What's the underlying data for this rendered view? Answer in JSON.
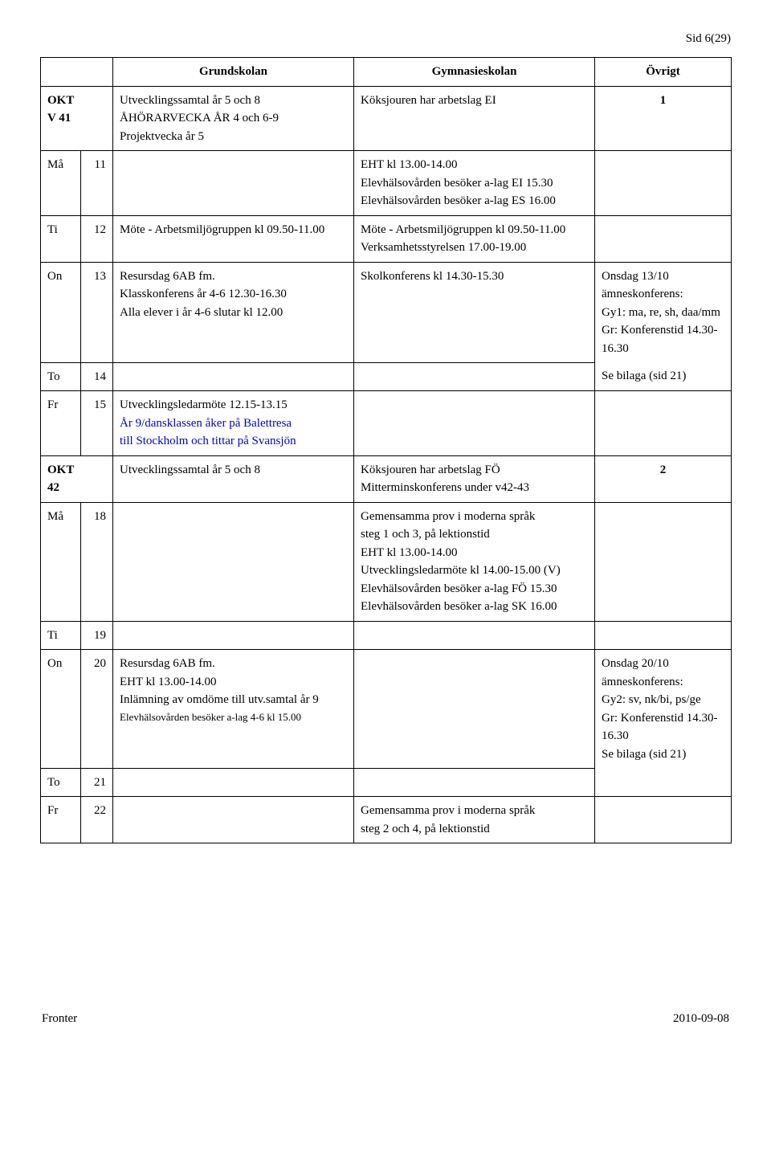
{
  "page_number": "Sid 6(29)",
  "headers": {
    "col1": "",
    "col2": "",
    "grund": "Grundskolan",
    "gym": "Gymnasieskolan",
    "ov": "Övrigt"
  },
  "rows": [
    {
      "day": "OKT\nV 41",
      "dayClass": "day-bold",
      "date": "",
      "gr": [
        "Utvecklingssamtal år 5 och 8",
        "ÅHÖRARVECKA ÅR 4 och 6-9",
        "Projektvecka år 5"
      ],
      "gy": [
        "Köksjouren har arbetslag EI"
      ],
      "ov": [
        "1"
      ],
      "ovClass": "center-num",
      "merge": "with-next"
    },
    {
      "day": "Må",
      "date": "11",
      "gr": [],
      "gy": [
        "EHT kl 13.00-14.00",
        "Elevhälsovården besöker a-lag EI 15.30",
        "Elevhälsovården besöker a-lag ES 16.00"
      ],
      "ov": []
    },
    {
      "day": "Ti",
      "date": "12",
      "gr": [
        "Möte - Arbetsmiljögruppen kl 09.50-11.00"
      ],
      "gy": [
        "Möte - Arbetsmiljögruppen kl 09.50-11.00",
        "Verksamhetsstyrelsen 17.00-19.00"
      ],
      "ov": []
    },
    {
      "day": "On",
      "date": "13",
      "gr": [
        "Resursdag 6AB fm.",
        "Klasskonferens år 4-6 12.30-16.30",
        "Alla elever i år 4-6 slutar kl 12.00"
      ],
      "gy": [
        "Skolkonferens kl 14.30-15.30"
      ],
      "ov": [
        "Onsdag 13/10",
        "ämneskonferens:",
        "Gy1: ma, re, sh, daa/mm",
        "Gr: Konferenstid 14.30-16.30"
      ],
      "merge": "open-bottom"
    },
    {
      "day": "To",
      "date": "14",
      "gr": [],
      "gy": [],
      "ov": [
        "Se bilaga (sid 21)"
      ],
      "merge": "open-top"
    },
    {
      "day": "Fr",
      "date": "15",
      "gr": [
        "Utvecklingsledarmöte 12.15-13.15",
        {
          "text": "År 9/dansklassen åker på Balettresa",
          "cls": "blue"
        },
        {
          "text": "till Stockholm och tittar på Svansjön",
          "cls": "blue"
        }
      ],
      "gy": [],
      "ov": []
    },
    {
      "day": "OKT\n42",
      "dayClass": "day-bold",
      "date": "",
      "gr": [
        "Utvecklingssamtal år 5 och 8"
      ],
      "gy": [
        "Köksjouren har arbetslag FÖ",
        "Mitterminskonferens under v42-43"
      ],
      "ov": [
        "2"
      ],
      "ovClass": "center-num",
      "merge": "with-next"
    },
    {
      "day": "Må",
      "date": "18",
      "gr": [],
      "gy": [
        "Gemensamma prov i moderna språk",
        "steg 1 och 3, på lektionstid",
        "EHT kl 13.00-14.00",
        "Utvecklingsledarmöte kl 14.00-15.00 (V)",
        "Elevhälsovården besöker a-lag FÖ 15.30",
        "Elevhälsovården besöker a-lag SK 16.00"
      ],
      "ov": []
    },
    {
      "day": "Ti",
      "date": "19",
      "gr": [
        " "
      ],
      "gy": [],
      "ov": []
    },
    {
      "day": "On",
      "date": "20",
      "gr": [
        "Resursdag 6AB fm.",
        "EHT kl 13.00-14.00",
        "Inlämning av omdöme till utv.samtal år 9",
        {
          "text": "Elevhälsovården besöker a-lag 4-6 kl 15.00",
          "cls": "small"
        }
      ],
      "gy": [],
      "ov": [
        "Onsdag 20/10",
        "ämneskonferens:",
        "Gy2: sv, nk/bi, ps/ge",
        "Gr: Konferenstid 14.30-16.30",
        "Se bilaga (sid 21)"
      ],
      "merge": "open-bottom"
    },
    {
      "day": "To",
      "date": "21",
      "gr": [
        " "
      ],
      "gy": [],
      "ov": [],
      "merge": "open-top"
    },
    {
      "day": "Fr",
      "date": "22",
      "gr": [],
      "gy": [
        "Gemensamma prov i moderna språk",
        "steg 2 och 4, på lektionstid"
      ],
      "ov": []
    }
  ],
  "footer": {
    "left": "Fronter",
    "right": "2010-09-08"
  }
}
